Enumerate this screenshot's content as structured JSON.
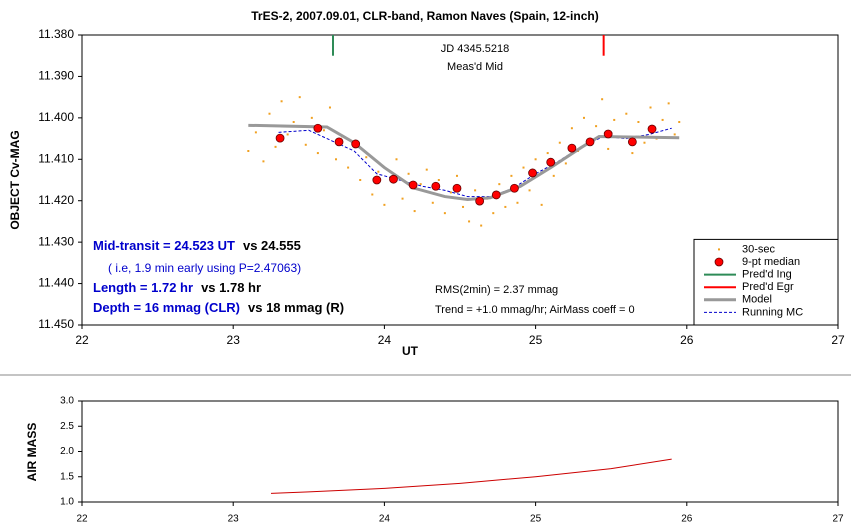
{
  "chart_data": [
    {
      "type": "line",
      "title": "TrES-2, 2007.09.01, CLR-band, Ramon Naves (Spain, 12-inch)",
      "xlabel": "UT",
      "ylabel": "OBJECT Cv-MAG",
      "xlim": [
        22,
        27
      ],
      "xticks": [
        22,
        23,
        24,
        25,
        26,
        27
      ],
      "ylim": [
        11.38,
        11.45
      ],
      "y_inverted": true,
      "yticks": [
        {
          "value": 11.38,
          "label": "11.380"
        },
        {
          "value": 11.39,
          "label": "11.390"
        },
        {
          "value": 11.4,
          "label": "11.400"
        },
        {
          "value": 11.41,
          "label": "11.410"
        },
        {
          "value": 11.42,
          "label": "11.420"
        },
        {
          "value": 11.43,
          "label": "11.430"
        },
        {
          "value": 11.44,
          "label": "11.440"
        },
        {
          "value": 11.45,
          "label": "11.450"
        }
      ],
      "legend": "lower right",
      "series": [
        {
          "name": "30-sec",
          "mark": "point",
          "color": "#f0a020",
          "x": [
            23.1,
            23.15,
            23.2,
            23.24,
            23.28,
            23.32,
            23.36,
            23.4,
            23.44,
            23.48,
            23.52,
            23.56,
            23.6,
            23.64,
            23.68,
            23.72,
            23.76,
            23.8,
            23.84,
            23.88,
            23.92,
            23.96,
            24.0,
            24.04,
            24.08,
            24.12,
            24.16,
            24.2,
            24.24,
            24.28,
            24.32,
            24.36,
            24.4,
            24.44,
            24.48,
            24.52,
            24.56,
            24.6,
            24.64,
            24.68,
            24.72,
            24.76,
            24.8,
            24.84,
            24.88,
            24.92,
            24.96,
            25.0,
            25.04,
            25.08,
            25.12,
            25.16,
            25.2,
            25.24,
            25.28,
            25.32,
            25.36,
            25.4,
            25.44,
            25.48,
            25.52,
            25.56,
            25.6,
            25.64,
            25.68,
            25.72,
            25.76,
            25.8,
            25.84,
            25.88,
            25.92,
            25.95
          ],
          "values": [
            11.408,
            11.4035,
            11.4105,
            11.399,
            11.407,
            11.396,
            11.404,
            11.401,
            11.395,
            11.4065,
            11.4,
            11.4085,
            11.403,
            11.3975,
            11.41,
            11.4045,
            11.412,
            11.406,
            11.415,
            11.4095,
            11.4185,
            11.413,
            11.421,
            11.4145,
            11.41,
            11.4195,
            11.4135,
            11.4225,
            11.416,
            11.4125,
            11.4205,
            11.415,
            11.423,
            11.418,
            11.414,
            11.4215,
            11.425,
            11.4175,
            11.426,
            11.4195,
            11.423,
            11.416,
            11.4215,
            11.414,
            11.4205,
            11.412,
            11.4175,
            11.41,
            11.421,
            11.4085,
            11.414,
            11.406,
            11.411,
            11.4025,
            11.408,
            11.4,
            11.406,
            11.402,
            11.3955,
            11.4075,
            11.4005,
            11.4045,
            11.399,
            11.4085,
            11.401,
            11.406,
            11.3975,
            11.405,
            11.4005,
            11.3965,
            11.404,
            11.401
          ]
        },
        {
          "name": "Running MC",
          "mark": "line",
          "color": "#0000cc",
          "width": 1,
          "dash": true,
          "x": [
            23.3,
            23.5,
            23.65,
            23.8,
            23.95,
            24.1,
            24.25,
            24.4,
            24.55,
            24.7,
            24.85,
            25.0,
            25.15,
            25.3,
            25.45,
            25.6,
            25.75,
            25.9
          ],
          "values": [
            11.4035,
            11.403,
            11.4055,
            11.408,
            11.4135,
            11.415,
            11.4165,
            11.4175,
            11.419,
            11.419,
            11.417,
            11.4135,
            11.4105,
            11.407,
            11.4045,
            11.405,
            11.404,
            11.4025
          ]
        },
        {
          "name": "Model",
          "mark": "line",
          "color": "#999999",
          "width": 3,
          "x": [
            23.1,
            23.62,
            23.8,
            24.0,
            24.2,
            24.4,
            24.55,
            24.7,
            24.9,
            25.1,
            25.3,
            25.42,
            25.95
          ],
          "values": [
            11.4018,
            11.4022,
            11.406,
            11.412,
            11.417,
            11.419,
            11.4197,
            11.4193,
            11.4165,
            11.412,
            11.4072,
            11.4045,
            11.4048
          ]
        },
        {
          "name": "9-pt median",
          "mark": "circle",
          "color": "#ff0000",
          "x": [
            23.31,
            23.56,
            23.7,
            23.81,
            23.95,
            24.06,
            24.19,
            24.34,
            24.48,
            24.63,
            24.74,
            24.86,
            24.98,
            25.1,
            25.24,
            25.36,
            25.48,
            25.64,
            25.77
          ],
          "values": [
            11.4049,
            11.4025,
            11.4058,
            11.4063,
            11.415,
            11.4148,
            11.4162,
            11.4165,
            11.417,
            11.4201,
            11.4186,
            11.417,
            11.4133,
            11.4107,
            11.4073,
            11.4058,
            11.4039,
            11.4058,
            11.4027
          ]
        },
        {
          "name": "Pred'd Ing",
          "mark": "line",
          "color": "#2e8b57",
          "width": 2,
          "x": [
            23.66,
            23.66
          ],
          "values": [
            11.38,
            11.385
          ]
        },
        {
          "name": "Pred'd Egr",
          "mark": "line",
          "color": "#ff0000",
          "width": 2,
          "x": [
            25.45,
            25.45
          ],
          "values": [
            11.38,
            11.385
          ]
        }
      ],
      "annotations": [
        "JD 4345.5218",
        "Meas'd Mid",
        "Mid-transit = 24.523 UT",
        "vs 24.555",
        "( i.e, 1.9 min early using P=2.47063)",
        "Length = 1.72 hr",
        "vs 1.78 hr",
        "Depth = 16 mmag (CLR)",
        "vs 18 mmag (R)",
        "RMS(2min) = 2.37 mmag",
        "Trend = +1.0 mmag/hr; AirMass coeff = 0"
      ]
    },
    {
      "type": "line",
      "ylabel": "AIR MASS",
      "xlim": [
        22,
        27
      ],
      "xticks": [
        22,
        23,
        24,
        25,
        26,
        27
      ],
      "ylim": [
        1,
        3
      ],
      "yticks": [
        {
          "value": 1,
          "label": "1.0"
        },
        {
          "value": 1.5,
          "label": "1.5"
        },
        {
          "value": 2,
          "label": "2.0"
        },
        {
          "value": 2.5,
          "label": "2.5"
        },
        {
          "value": 3,
          "label": "3.0"
        }
      ],
      "series": [
        {
          "mark": "line",
          "color": "#cc0000",
          "width": 1,
          "x": [
            23.25,
            23.5,
            24.0,
            24.5,
            25.0,
            25.5,
            25.9
          ],
          "values": [
            1.17,
            1.2,
            1.27,
            1.37,
            1.5,
            1.66,
            1.85
          ]
        }
      ]
    }
  ]
}
